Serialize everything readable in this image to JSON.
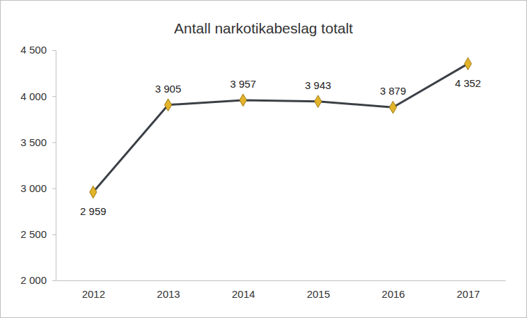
{
  "chart_data": {
    "type": "line",
    "title": "Antall narkotikabeslag totalt",
    "categories": [
      "2012",
      "2013",
      "2014",
      "2015",
      "2016",
      "2017"
    ],
    "values": [
      2959,
      3905,
      3957,
      3943,
      3879,
      4352
    ],
    "value_labels": [
      "2 959",
      "3 905",
      "3 957",
      "3 943",
      "3 879",
      "4 352"
    ],
    "color": "#3b4046",
    "marker": "diamond",
    "data_labels": true,
    "grid": false,
    "ylim": [
      2000,
      4500
    ],
    "yticks": [
      {
        "value": 2000,
        "label": "2 000"
      },
      {
        "value": 2500,
        "label": "2 500"
      },
      {
        "value": 3000,
        "label": "3 000"
      },
      {
        "value": 3500,
        "label": "3 500"
      },
      {
        "value": 4000,
        "label": "4 000"
      },
      {
        "value": 4500,
        "label": "4 500"
      }
    ]
  }
}
